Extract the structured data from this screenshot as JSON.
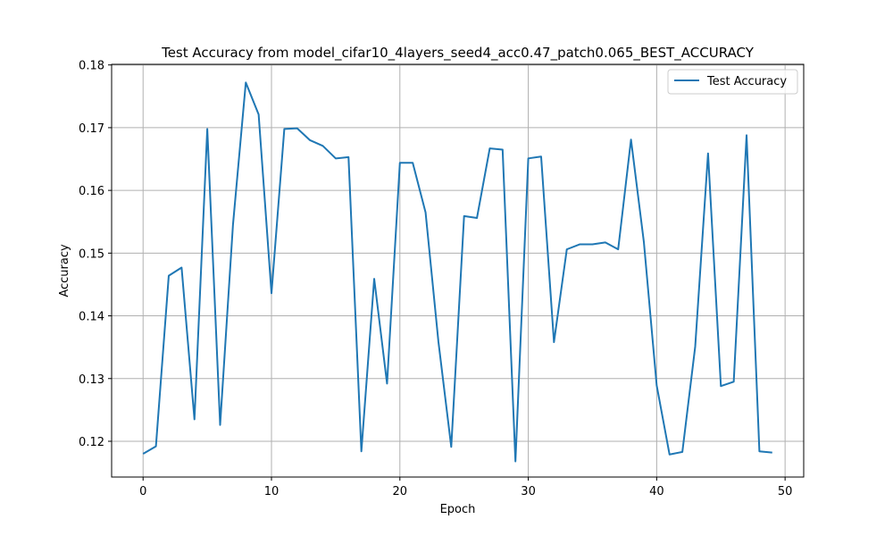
{
  "chart_data": {
    "type": "line",
    "title": "Test Accuracy from model_cifar10_4layers_seed4_acc0.47_patch0.065_BEST_ACCURACY",
    "xlabel": "Epoch",
    "ylabel": "Accuracy",
    "xlim": [
      -2.45,
      51.45
    ],
    "ylim": [
      0.1143,
      0.1801
    ],
    "xticks": [
      0,
      10,
      20,
      30,
      40,
      50
    ],
    "yticks": [
      0.12,
      0.13,
      0.14,
      0.15,
      0.16,
      0.17,
      0.18
    ],
    "grid": true,
    "legend_position": "top-right",
    "series": [
      {
        "name": "Test Accuracy",
        "color": "#1f77b4",
        "x": [
          0,
          1,
          2,
          3,
          4,
          5,
          6,
          7,
          8,
          9,
          10,
          11,
          12,
          13,
          14,
          15,
          16,
          17,
          18,
          19,
          20,
          21,
          22,
          23,
          24,
          25,
          26,
          27,
          28,
          29,
          30,
          31,
          32,
          33,
          34,
          35,
          36,
          37,
          38,
          39,
          40,
          41,
          42,
          43,
          44,
          45,
          46,
          47,
          48,
          49
        ],
        "y": [
          0.118,
          0.1192,
          0.1464,
          0.1477,
          0.1235,
          0.1698,
          0.1226,
          0.1545,
          0.1772,
          0.1721,
          0.1436,
          0.1698,
          0.1699,
          0.168,
          0.1671,
          0.1651,
          0.1653,
          0.1184,
          0.1459,
          0.1292,
          0.1644,
          0.1644,
          0.1565,
          0.1359,
          0.1191,
          0.1559,
          0.1556,
          0.1667,
          0.1665,
          0.1168,
          0.1651,
          0.1654,
          0.1358,
          0.1506,
          0.1514,
          0.1514,
          0.1517,
          0.1506,
          0.1681,
          0.1518,
          0.1289,
          0.1179,
          0.1183,
          0.1351,
          0.1659,
          0.1288,
          0.1295,
          0.1688,
          0.1184,
          0.1182
        ]
      }
    ]
  }
}
